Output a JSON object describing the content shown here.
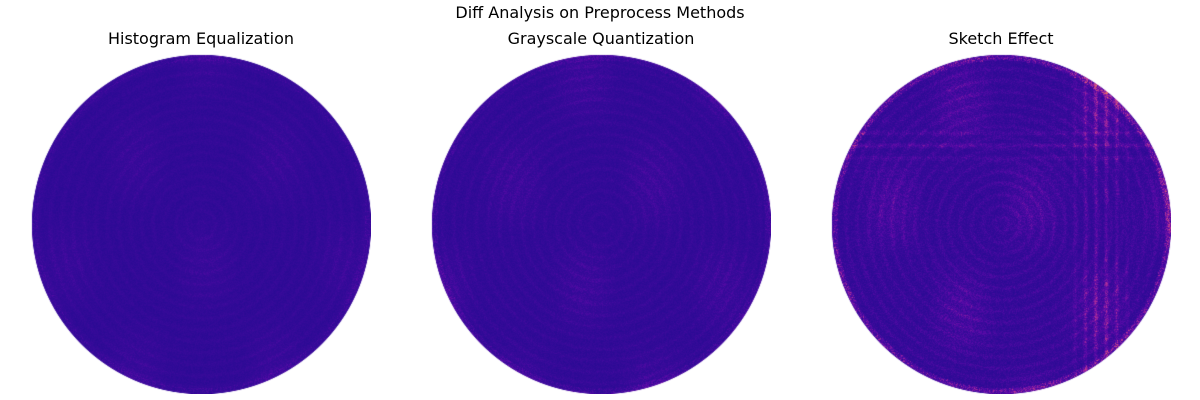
{
  "figure": {
    "title": "Diff Analysis on Preprocess Methods"
  },
  "panels": [
    {
      "title": "Histogram Equalization",
      "colormap": "plasma",
      "colors": {
        "base": "#2a0a94",
        "mid": "#5a0aa8",
        "hot": "#9c1aa6",
        "peak": "#e8507a"
      },
      "intensity": 0.25
    },
    {
      "title": "Grayscale Quantization",
      "colormap": "plasma",
      "colors": {
        "base": "#2a0a94",
        "mid": "#5a0aa8",
        "hot": "#9c1aa6",
        "peak": "#e8507a"
      },
      "intensity": 0.35
    },
    {
      "title": "Sketch Effect",
      "colormap": "plasma",
      "colors": {
        "base": "#2a0a94",
        "mid": "#5a0aa8",
        "hot": "#b4309a",
        "peak": "#f07a5a"
      },
      "intensity": 0.6
    }
  ]
}
